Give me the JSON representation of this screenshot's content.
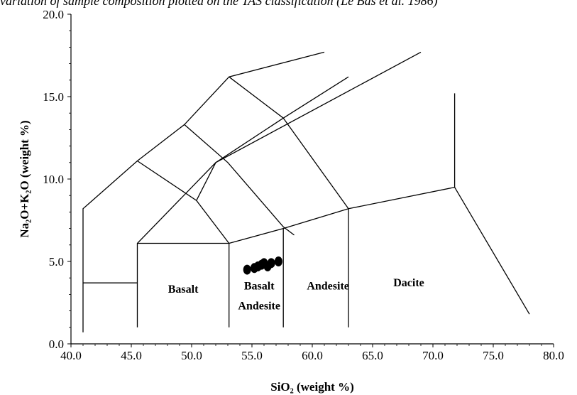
{
  "caption_fragment": "variation of sample composition plotted on the TAS classification (Le Bas et al. 1986)",
  "chart_data": {
    "type": "scatter",
    "title": "",
    "xlabel": "SiO₂ (weight %)",
    "ylabel": "Na₂O+K₂O (weight %)",
    "xlim": [
      40,
      80
    ],
    "ylim": [
      0,
      20
    ],
    "x_ticks": [
      40,
      45,
      50,
      55,
      60,
      65,
      70,
      75,
      80
    ],
    "x_tick_labels": [
      "40.0",
      "45.0",
      "50.0",
      "55.0",
      "60.0",
      "65.0",
      "70.0",
      "75.0",
      "80.0"
    ],
    "y_ticks": [
      0,
      5,
      10,
      15,
      20
    ],
    "y_tick_labels": [
      "0.0",
      "5.0",
      "10.0",
      "15.0",
      "20.0"
    ],
    "grid": false,
    "boundaries": [
      [
        [
          41,
          0.7
        ],
        [
          41,
          8.2
        ],
        [
          45.5,
          11.1
        ],
        [
          49.4,
          13.3
        ],
        [
          53.1,
          16.2
        ],
        [
          61,
          17.7
        ]
      ],
      [
        [
          41,
          3.7
        ],
        [
          45.5,
          3.7
        ]
      ],
      [
        [
          45.5,
          1.0
        ],
        [
          45.5,
          6.1
        ],
        [
          52.0,
          11.0
        ],
        [
          69,
          17.7
        ]
      ],
      [
        [
          45.5,
          6.1
        ],
        [
          53.1,
          6.1
        ],
        [
          53.1,
          1.0
        ]
      ],
      [
        [
          45.5,
          11.1
        ],
        [
          50.4,
          8.7
        ],
        [
          53.1,
          6.1
        ]
      ],
      [
        [
          49.4,
          13.3
        ],
        [
          53,
          11
        ],
        [
          57.6,
          7.1
        ],
        [
          58.5,
          6.6
        ]
      ],
      [
        [
          50.4,
          8.7
        ],
        [
          52,
          11
        ]
      ],
      [
        [
          52,
          11
        ],
        [
          57.6,
          13.7
        ],
        [
          63,
          16.2
        ]
      ],
      [
        [
          53.1,
          6.1
        ],
        [
          57.6,
          7.0
        ],
        [
          63.0,
          8.2
        ],
        [
          71.8,
          9.5
        ],
        [
          78,
          1.8
        ]
      ],
      [
        [
          57.6,
          7.0
        ],
        [
          57.6,
          1.0
        ]
      ],
      [
        [
          63.0,
          8.2
        ],
        [
          63.0,
          1.0
        ]
      ],
      [
        [
          71.8,
          9.5
        ],
        [
          71.8,
          15.2
        ]
      ],
      [
        [
          57.6,
          13.7
        ],
        [
          63,
          8.2
        ]
      ],
      [
        [
          53.1,
          16.2
        ],
        [
          57.6,
          13.7
        ]
      ]
    ],
    "field_labels": [
      {
        "text": "Basalt",
        "x": 49.3,
        "y": 3.1
      },
      {
        "text": "Basalt",
        "x": 55.6,
        "y": 3.3
      },
      {
        "text": "Andesite",
        "x": 55.6,
        "y": 2.1
      },
      {
        "text": "Andesite",
        "x": 61.3,
        "y": 3.3
      },
      {
        "text": "Dacite",
        "x": 68.0,
        "y": 3.5
      }
    ],
    "points": [
      {
        "x": 54.6,
        "y": 4.5
      },
      {
        "x": 55.2,
        "y": 4.6
      },
      {
        "x": 55.5,
        "y": 4.7
      },
      {
        "x": 55.8,
        "y": 4.8
      },
      {
        "x": 56.0,
        "y": 4.9
      },
      {
        "x": 56.3,
        "y": 4.7
      },
      {
        "x": 56.6,
        "y": 4.9
      },
      {
        "x": 57.2,
        "y": 5.0
      }
    ]
  }
}
